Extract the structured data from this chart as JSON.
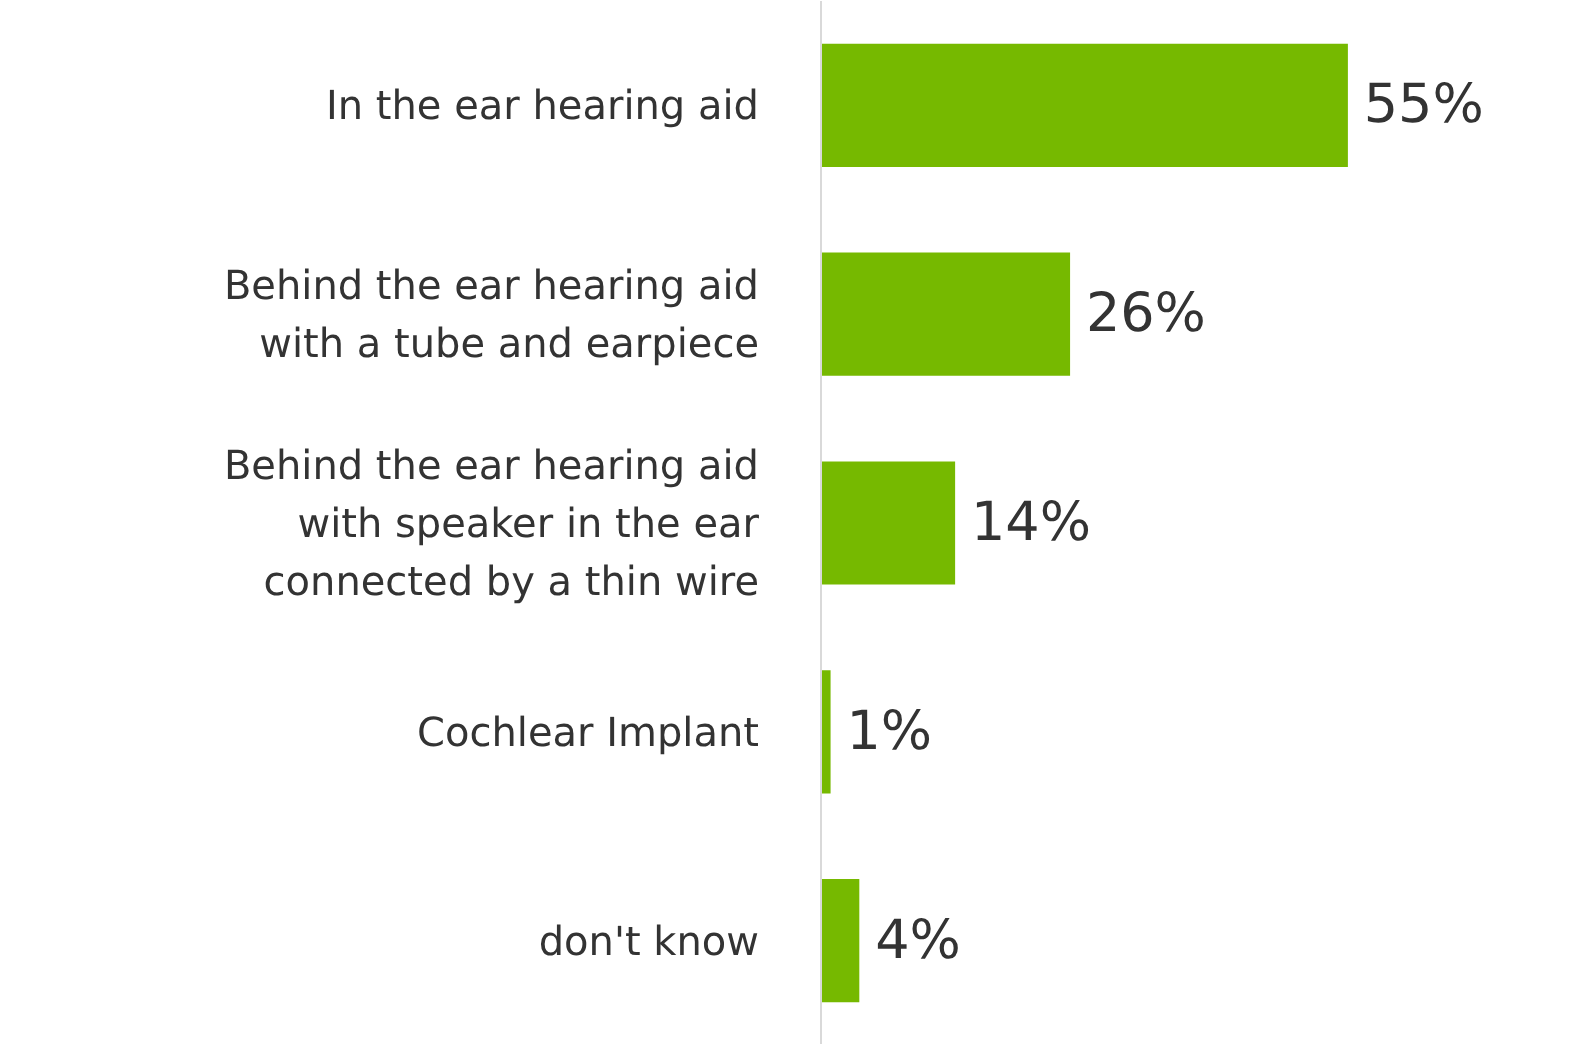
{
  "chart_data": {
    "type": "bar",
    "orientation": "horizontal",
    "categories": [
      "In the ear hearing aid",
      "Behind the ear hearing aid with a tube and earpiece",
      "Behind the ear hearing aid with speaker in the ear connected by a thin wire",
      "Cochlear Implant",
      "don't know"
    ],
    "values": [
      55,
      26,
      14,
      1,
      4
    ],
    "value_labels": [
      "55%",
      "26%",
      "14%",
      "1%",
      "4%"
    ],
    "color": "#76b900",
    "grid": false
  }
}
